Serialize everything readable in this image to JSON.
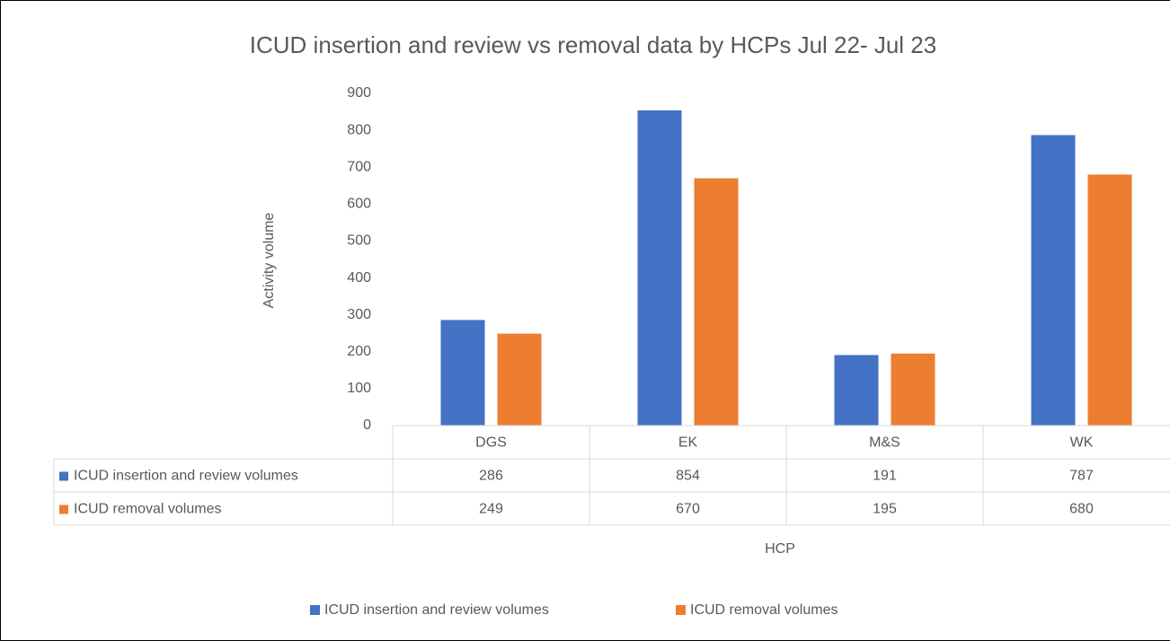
{
  "chart_data": {
    "type": "bar",
    "title": "ICUD insertion and review vs removal data by HCPs Jul 22- Jul 23",
    "x_label": "HCP",
    "y_label": "Activity volume",
    "categories": [
      "DGS",
      "EK",
      "M&S",
      "WK"
    ],
    "series": [
      {
        "name": "ICUD insertion and review volumes",
        "color": "#4472c4",
        "values": [
          286,
          854,
          191,
          787
        ]
      },
      {
        "name": "ICUD removal volumes",
        "color": "#ed7d31",
        "values": [
          249,
          670,
          195,
          680
        ]
      }
    ],
    "ylim": [
      0,
      900
    ],
    "yticks": [
      0,
      100,
      200,
      300,
      400,
      500,
      600,
      700,
      800,
      900
    ],
    "grid": false,
    "legend": "bottom",
    "data_table": true
  }
}
